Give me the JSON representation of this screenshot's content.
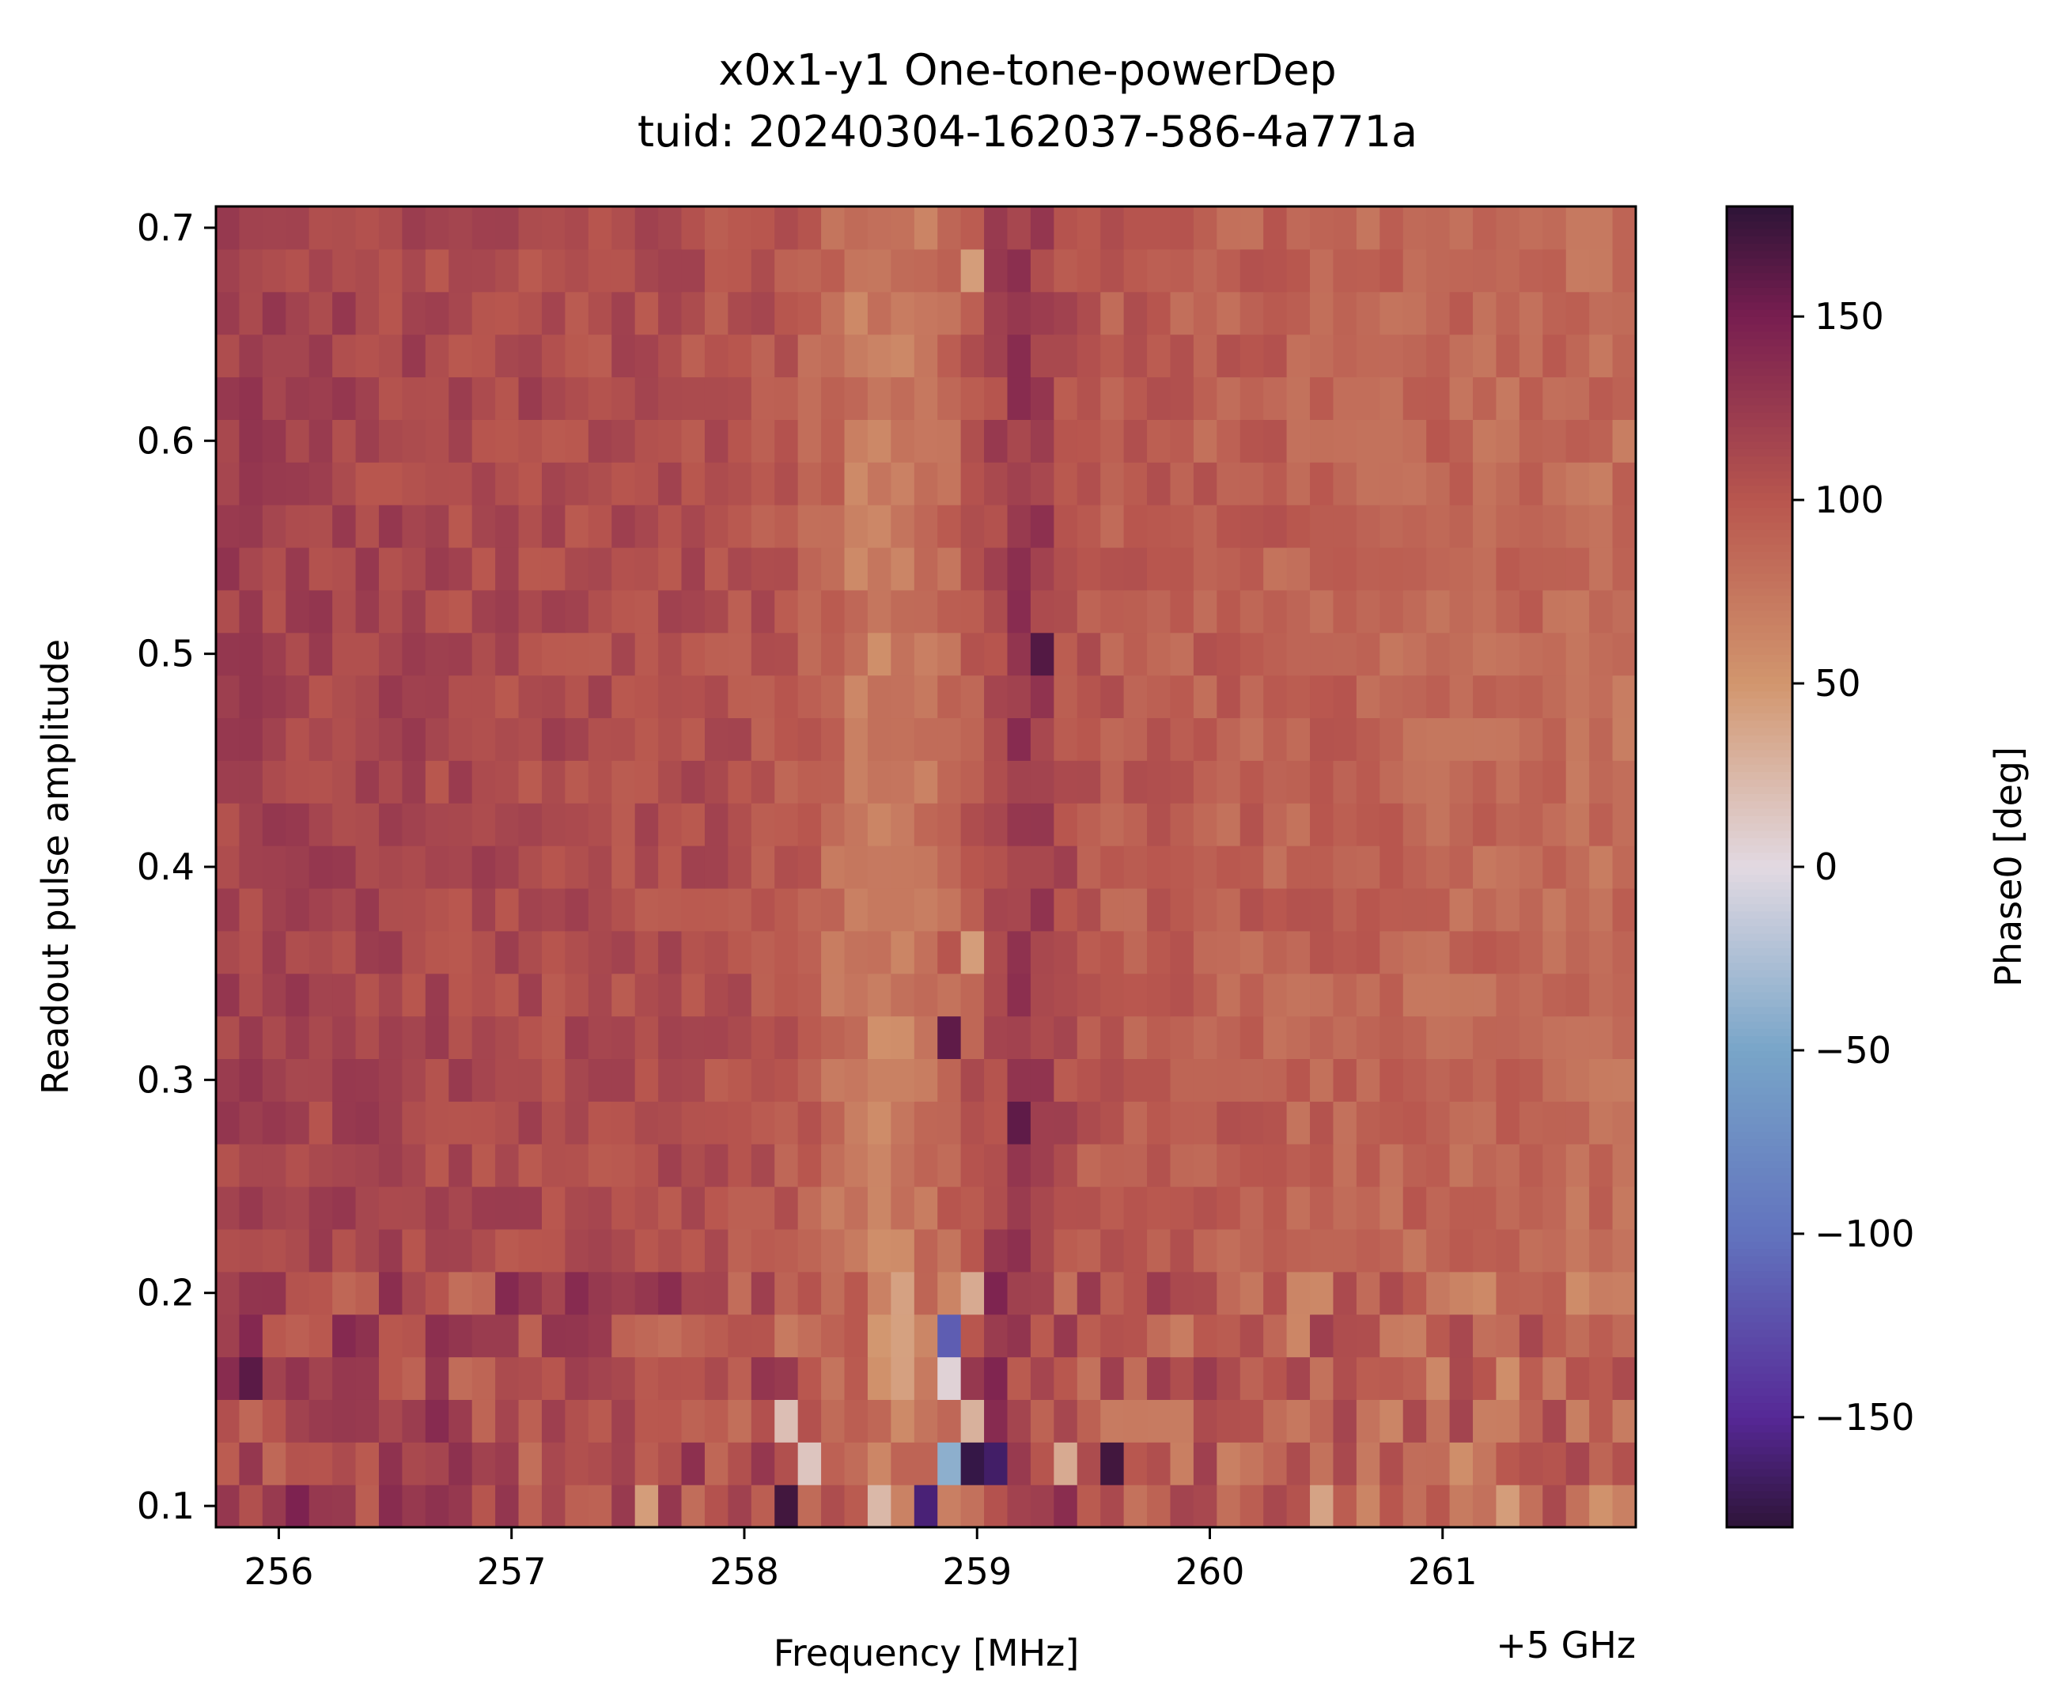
{
  "chart_data": {
    "type": "heatmap",
    "title": "x0x1-y1 One-tone-powerDep",
    "subtitle": "tuid: 20240304-162037-586-4a771a",
    "xlabel": "Frequency [MHz]",
    "x_offset_label": "+5 GHz",
    "ylabel": "Readout pulse amplitude",
    "colorbar_label": "Phase0 [deg]",
    "colormap": "twilight_shifted",
    "xlim": [
      255.73,
      261.83
    ],
    "ylim": [
      0.09,
      0.71
    ],
    "zlim": [
      -180,
      180
    ],
    "x_ticks": [
      256,
      257,
      258,
      259,
      260,
      261
    ],
    "x_tick_labels": [
      "256",
      "257",
      "258",
      "259",
      "260",
      "261"
    ],
    "y_ticks": [
      0.1,
      0.2,
      0.3,
      0.4,
      0.5,
      0.6,
      0.7
    ],
    "y_tick_labels": [
      "0.1",
      "0.2",
      "0.3",
      "0.4",
      "0.5",
      "0.6",
      "0.7"
    ],
    "colorbar_ticks": [
      150,
      100,
      50,
      0,
      -50,
      -100,
      -150
    ],
    "colorbar_tick_labels": [
      "150",
      "100",
      "50",
      "0",
      "−50",
      "−100",
      "−150"
    ],
    "x_columns": 61,
    "y_rows": 31,
    "grid": false,
    "phase_profile": {
      "baseline_low_freq_deg": 118,
      "baseline_high_freq_deg": 82,
      "light_band_center_mhz": 258.6,
      "light_band_value_deg": 60,
      "resonance_center_mhz": 259.2,
      "resonance_value_deg": 135,
      "noise_deg": 14
    },
    "notable_cells": [
      {
        "x": 258.86,
        "y": 0.18,
        "value": -115
      },
      {
        "x": 258.86,
        "y": 0.12,
        "value": -40
      },
      {
        "x": 258.86,
        "y": 0.16,
        "value": 5
      },
      {
        "x": 258.96,
        "y": 0.12,
        "value": -175
      },
      {
        "x": 259.06,
        "y": 0.12,
        "value": -165
      },
      {
        "x": 258.76,
        "y": 0.1,
        "value": -160
      },
      {
        "x": 258.16,
        "y": 0.14,
        "value": 20
      },
      {
        "x": 258.26,
        "y": 0.12,
        "value": 15
      },
      {
        "x": 258.56,
        "y": 0.1,
        "value": 25
      },
      {
        "x": 258.96,
        "y": 0.14,
        "value": 30
      },
      {
        "x": 258.96,
        "y": 0.2,
        "value": 35
      },
      {
        "x": 259.56,
        "y": 0.12,
        "value": 172
      },
      {
        "x": 258.16,
        "y": 0.1,
        "value": 172
      },
      {
        "x": 258.96,
        "y": 0.35,
        "value": 45
      },
      {
        "x": 258.86,
        "y": 0.32,
        "value": 160
      },
      {
        "x": 258.96,
        "y": 0.67,
        "value": 45
      },
      {
        "x": 259.36,
        "y": 0.12,
        "value": 35
      },
      {
        "x": 257.56,
        "y": 0.1,
        "value": 45
      },
      {
        "x": 261.26,
        "y": 0.1,
        "value": 45
      },
      {
        "x": 260.46,
        "y": 0.1,
        "value": 40
      },
      {
        "x": 259.26,
        "y": 0.5,
        "value": 165
      },
      {
        "x": 259.16,
        "y": 0.27,
        "value": 160
      },
      {
        "x": 255.86,
        "y": 0.15,
        "value": 162
      }
    ]
  }
}
